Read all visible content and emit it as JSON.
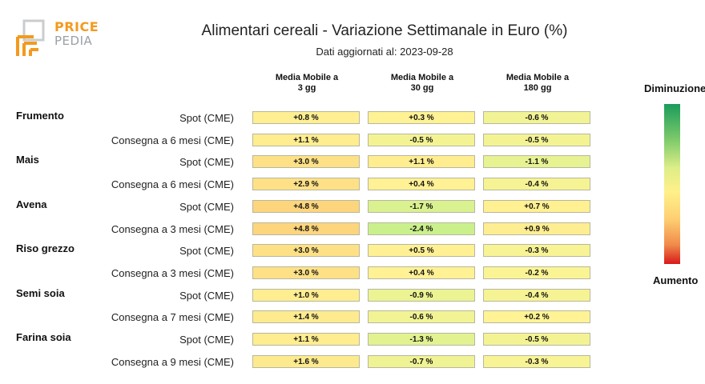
{
  "header": {
    "logo_line1": "PRICE",
    "logo_line2": "PEDIA",
    "title": "Alimentari cereali - Variazione Settimanale in Euro (%)",
    "subtitle": "Dati aggiornati al: 2023-09-28"
  },
  "legend": {
    "top_label": "Diminuzione",
    "bottom_label": "Aumento"
  },
  "colors": {
    "decrease": "#1a9c5c",
    "neutral": "#fff08a",
    "increase": "#d7191c"
  },
  "chart_data": {
    "type": "table",
    "title": "Alimentari cereali - Variazione Settimanale in Euro (%)",
    "columns": [
      "Media Mobile a\n3 gg",
      "Media Mobile a\n30 gg",
      "Media Mobile a\n180 gg"
    ],
    "rows": [
      {
        "group": "Frumento",
        "label": "Spot (CME)",
        "values": [
          0.8,
          0.3,
          -0.6
        ],
        "texts": [
          "+0.8 %",
          "+0.3 %",
          "-0.6 %"
        ]
      },
      {
        "group": "",
        "label": "Consegna a 6 mesi (CME)",
        "values": [
          1.1,
          -0.5,
          -0.5
        ],
        "texts": [
          "+1.1 %",
          "-0.5 %",
          "-0.5 %"
        ]
      },
      {
        "group": "Mais",
        "label": "Spot (CME)",
        "values": [
          3.0,
          1.1,
          -1.1
        ],
        "texts": [
          "+3.0 %",
          "+1.1 %",
          "-1.1 %"
        ]
      },
      {
        "group": "",
        "label": "Consegna a 6 mesi (CME)",
        "values": [
          2.9,
          0.4,
          -0.4
        ],
        "texts": [
          "+2.9 %",
          "+0.4 %",
          "-0.4 %"
        ]
      },
      {
        "group": "Avena",
        "label": "Spot (CME)",
        "values": [
          4.8,
          -1.7,
          0.7
        ],
        "texts": [
          "+4.8 %",
          "-1.7 %",
          "+0.7 %"
        ]
      },
      {
        "group": "",
        "label": "Consegna a 3 mesi (CME)",
        "values": [
          4.8,
          -2.4,
          0.9
        ],
        "texts": [
          "+4.8 %",
          "-2.4 %",
          "+0.9 %"
        ]
      },
      {
        "group": "Riso grezzo",
        "label": "Spot (CME)",
        "values": [
          3.0,
          0.5,
          -0.3
        ],
        "texts": [
          "+3.0 %",
          "+0.5 %",
          "-0.3 %"
        ]
      },
      {
        "group": "",
        "label": "Consegna a 3 mesi (CME)",
        "values": [
          3.0,
          0.4,
          -0.2
        ],
        "texts": [
          "+3.0 %",
          "+0.4 %",
          "-0.2 %"
        ]
      },
      {
        "group": "Semi soia",
        "label": "Spot (CME)",
        "values": [
          1.0,
          -0.9,
          -0.4
        ],
        "texts": [
          "+1.0 %",
          "-0.9 %",
          "-0.4 %"
        ]
      },
      {
        "group": "",
        "label": "Consegna a 7 mesi (CME)",
        "values": [
          1.4,
          -0.6,
          0.2
        ],
        "texts": [
          "+1.4 %",
          "-0.6 %",
          "+0.2 %"
        ]
      },
      {
        "group": "Farina soia",
        "label": "Spot (CME)",
        "values": [
          1.1,
          -1.3,
          -0.5
        ],
        "texts": [
          "+1.1 %",
          "-1.3 %",
          "-0.5 %"
        ]
      },
      {
        "group": "",
        "label": "Consegna a 9 mesi (CME)",
        "values": [
          1.6,
          -0.7,
          -0.3
        ],
        "texts": [
          "+1.6 %",
          "-0.7 %",
          "-0.3 %"
        ]
      }
    ]
  }
}
